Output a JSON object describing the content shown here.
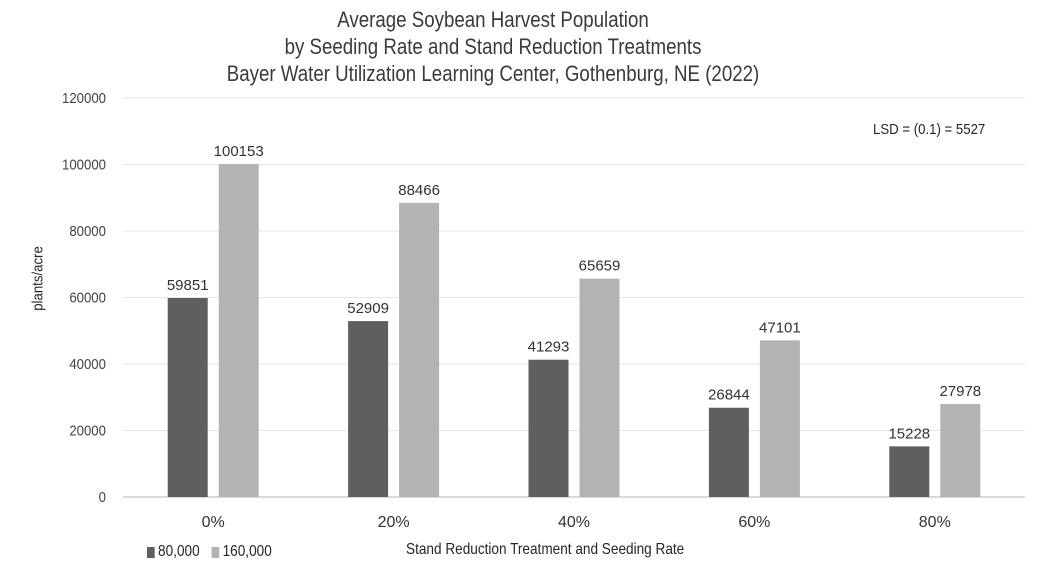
{
  "chart_data": {
    "type": "bar",
    "title": [
      "Average Soybean Harvest Population",
      "by Seeding Rate and Stand Reduction Treatments",
      "Bayer Water Utilization Learning Center, Gothenburg, NE (2022)"
    ],
    "xlabel": "Stand Reduction Treatment and Seeding Rate",
    "ylabel": "plants/acre",
    "ylim": [
      0,
      120000
    ],
    "yticks": [
      0,
      20000,
      40000,
      60000,
      80000,
      100000,
      120000
    ],
    "grid": true,
    "legend_position": "bottom-left",
    "categories": [
      "0%",
      "20%",
      "40%",
      "60%",
      "80%"
    ],
    "series": [
      {
        "name": "80,000",
        "color": "#5f5f5f",
        "values": [
          59851,
          52909,
          41293,
          26844,
          15228
        ]
      },
      {
        "name": "160,000",
        "color": "#b3b3b3",
        "values": [
          100153,
          88466,
          65659,
          47101,
          27978
        ]
      }
    ],
    "annotation": "LSD = (0.1) = 5527"
  }
}
